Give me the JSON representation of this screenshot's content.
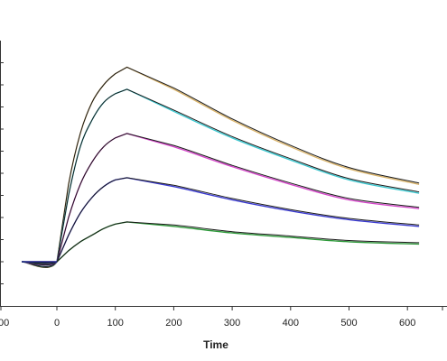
{
  "chart_data": {
    "type": "line",
    "title": "",
    "xlabel": "Time",
    "ylabel": "",
    "xlim": [
      -100,
      660
    ],
    "ylim": [
      -20,
      100
    ],
    "x_ticks": [
      0,
      100,
      200,
      300,
      400,
      500,
      600
    ],
    "x_tick_labels": [
      "0",
      "100",
      "200",
      "300",
      "400",
      "500",
      "600"
    ],
    "x_tick_label_partial": "00",
    "y_ticks": [
      -10,
      0,
      10,
      20,
      30,
      40,
      50,
      60,
      70,
      80,
      90
    ],
    "grid": false,
    "legend": "none",
    "association_end_time": 120,
    "series": [
      {
        "color": "#d9b36a",
        "fit_color": "#1a1a1a",
        "values": [
          [
            -60,
            0
          ],
          [
            0,
            0
          ],
          [
            20,
            35
          ],
          [
            40,
            58
          ],
          [
            60,
            72
          ],
          [
            80,
            80
          ],
          [
            100,
            85
          ],
          [
            120,
            88
          ],
          [
            200,
            78
          ],
          [
            300,
            64
          ],
          [
            400,
            52
          ],
          [
            500,
            42
          ],
          [
            620,
            35
          ]
        ]
      },
      {
        "color": "#3cc7cf",
        "fit_color": "#1a1a1a",
        "values": [
          [
            -60,
            0
          ],
          [
            0,
            0
          ],
          [
            20,
            30
          ],
          [
            40,
            52
          ],
          [
            60,
            64
          ],
          [
            80,
            72
          ],
          [
            100,
            76
          ],
          [
            120,
            78
          ],
          [
            200,
            68
          ],
          [
            300,
            56
          ],
          [
            400,
            46
          ],
          [
            500,
            37
          ],
          [
            620,
            31
          ]
        ]
      },
      {
        "color": "#d447c9",
        "fit_color": "#1a1a1a",
        "values": [
          [
            -60,
            0
          ],
          [
            0,
            0
          ],
          [
            20,
            20
          ],
          [
            40,
            35
          ],
          [
            60,
            45
          ],
          [
            80,
            52
          ],
          [
            100,
            56
          ],
          [
            120,
            58
          ],
          [
            200,
            52
          ],
          [
            300,
            43
          ],
          [
            400,
            35
          ],
          [
            500,
            28
          ],
          [
            620,
            24
          ]
        ]
      },
      {
        "color": "#3a3ad0",
        "fit_color": "#1a1a1a",
        "values": [
          [
            -60,
            0
          ],
          [
            0,
            0
          ],
          [
            20,
            12
          ],
          [
            40,
            22
          ],
          [
            60,
            29
          ],
          [
            80,
            34
          ],
          [
            100,
            37
          ],
          [
            120,
            38
          ],
          [
            200,
            34
          ],
          [
            300,
            28
          ],
          [
            400,
            23
          ],
          [
            500,
            19
          ],
          [
            620,
            16
          ]
        ]
      },
      {
        "color": "#2e9a3a",
        "fit_color": "#1a1a1a",
        "values": [
          [
            -60,
            0
          ],
          [
            0,
            0
          ],
          [
            20,
            5
          ],
          [
            40,
            9
          ],
          [
            60,
            12
          ],
          [
            80,
            15
          ],
          [
            100,
            17
          ],
          [
            120,
            18
          ],
          [
            200,
            16
          ],
          [
            300,
            13
          ],
          [
            400,
            11
          ],
          [
            500,
            9
          ],
          [
            620,
            8
          ]
        ]
      }
    ]
  }
}
